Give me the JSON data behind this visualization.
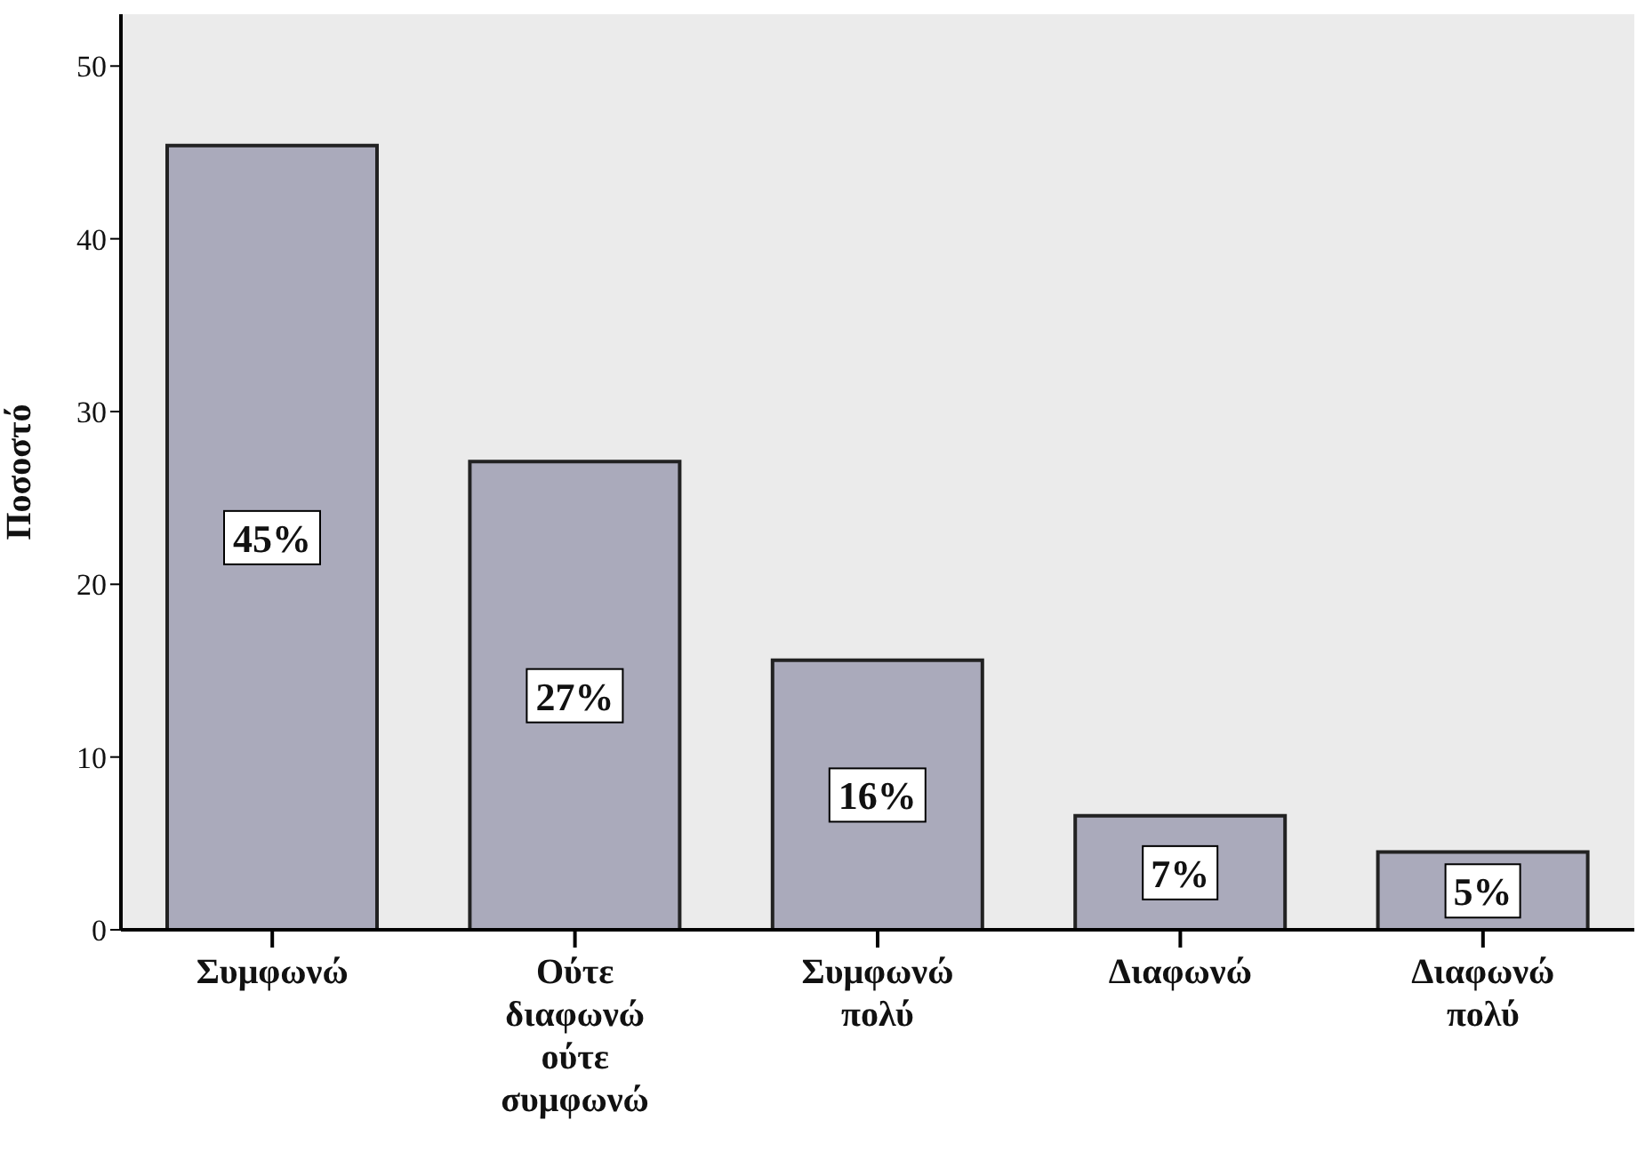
{
  "chart_data": {
    "type": "bar",
    "ylabel": "Ποσοστό",
    "categories": [
      "Συμφωνώ",
      "Ούτε διαφωνώ ούτε συμφωνώ",
      "Συμφωνώ πολύ",
      "Διαφωνώ",
      "Διαφωνώ πολύ"
    ],
    "values": [
      45.4,
      27.1,
      15.6,
      6.6,
      4.5
    ],
    "value_labels": [
      "45%",
      "27%",
      "16%",
      "7%",
      "5%"
    ],
    "color": "#aaaabb",
    "ylim": [
      0,
      53
    ],
    "yticks": [
      0,
      10,
      20,
      30,
      40,
      50
    ],
    "grid": false,
    "legend": false
  }
}
